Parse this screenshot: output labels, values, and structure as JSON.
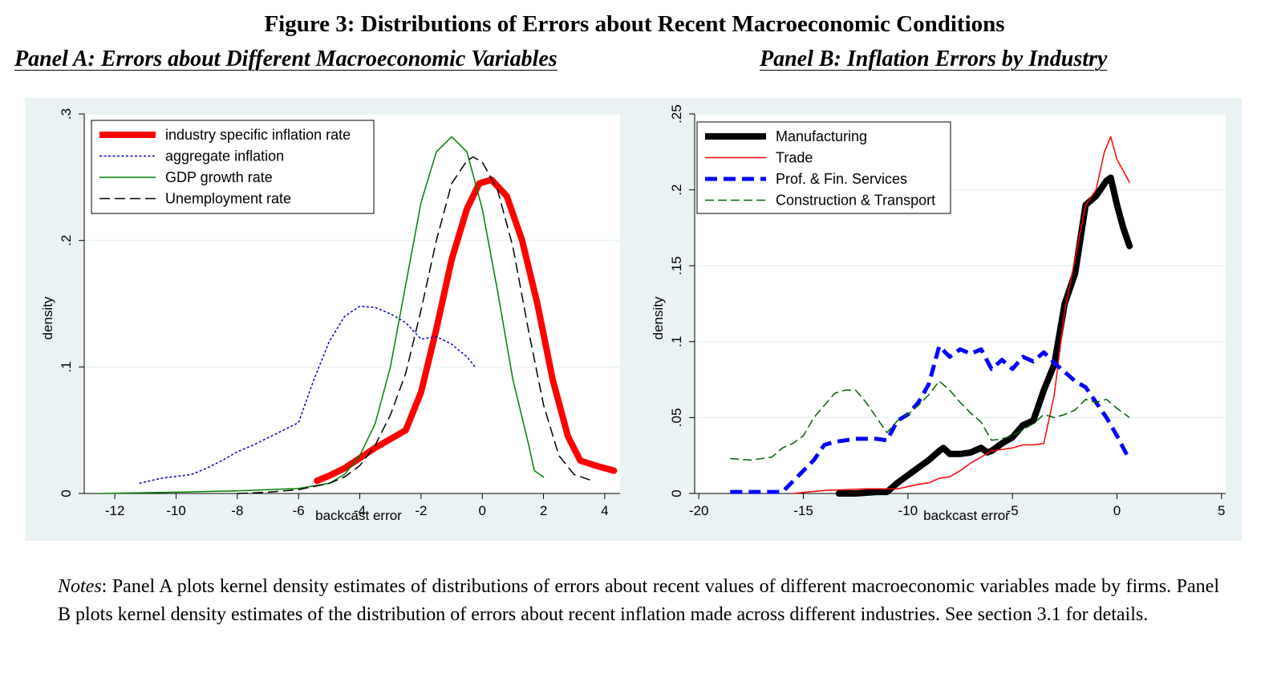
{
  "figure_title": "Figure 3: Distributions of Errors about Recent Macroeconomic Conditions",
  "panel_a_title": "Panel A: Errors about Different Macroeconomic Variables",
  "panel_b_title": "Panel B: Inflation Errors by Industry",
  "notes_label": "Notes",
  "notes_text": ": Panel A plots kernel density estimates of distributions of errors about recent values of different macroeconomic variables made by firms. Panel B plots kernel density estimates of the distribution of errors about recent inflation made across different industries. See section 3.1 for details.",
  "colors": {
    "panel_bg": "#eaf2f3",
    "plot_bg": "#ffffff",
    "grid": "#eaf2f3"
  },
  "chart_data": [
    {
      "type": "line",
      "xlabel": "backcast error",
      "ylabel": "density",
      "xlim": [
        -13,
        4.5
      ],
      "ylim": [
        0,
        0.3
      ],
      "xticks": [
        -12,
        -10,
        -8,
        -6,
        -4,
        -2,
        0,
        2,
        4
      ],
      "xtick_labels": [
        "-12",
        "-10",
        "-8",
        "-6",
        "-4",
        "-2",
        "0",
        "2",
        "4"
      ],
      "yticks": [
        0,
        0.1,
        0.2,
        0.3
      ],
      "ytick_labels": [
        "0",
        ".1",
        ".2",
        ".3"
      ],
      "grid": true,
      "legend_position": "top-left",
      "series": [
        {
          "name": "industry specific inflation rate",
          "color": "#ff0000",
          "width": 8,
          "dash": "",
          "x": [
            -5.4,
            -5.0,
            -4.5,
            -4.0,
            -3.5,
            -3.0,
            -2.5,
            -2.0,
            -1.5,
            -1.0,
            -0.5,
            -0.1,
            0.3,
            0.8,
            1.3,
            1.8,
            2.3,
            2.8,
            3.2,
            3.7,
            4.3
          ],
          "y": [
            0.01,
            0.014,
            0.02,
            0.028,
            0.036,
            0.043,
            0.05,
            0.08,
            0.13,
            0.185,
            0.225,
            0.245,
            0.248,
            0.235,
            0.2,
            0.15,
            0.09,
            0.045,
            0.026,
            0.022,
            0.018
          ]
        },
        {
          "name": "aggregate inflation",
          "color": "#0000cc",
          "width": 1.5,
          "dash": "3,2.5",
          "x": [
            -11.2,
            -10.5,
            -9.5,
            -9.0,
            -8.5,
            -8.0,
            -7.5,
            -7.0,
            -6.5,
            -6.0,
            -5.5,
            -5.0,
            -4.5,
            -4.0,
            -3.5,
            -3.0,
            -2.5,
            -2.0,
            -1.5,
            -1.0,
            -0.5,
            -0.2
          ],
          "y": [
            0.008,
            0.012,
            0.015,
            0.02,
            0.026,
            0.033,
            0.038,
            0.044,
            0.05,
            0.056,
            0.09,
            0.12,
            0.14,
            0.148,
            0.147,
            0.142,
            0.135,
            0.122,
            0.124,
            0.118,
            0.108,
            0.099
          ]
        },
        {
          "name": "GDP growth rate",
          "color": "#008000",
          "width": 1.5,
          "dash": "",
          "x": [
            -12.5,
            -10.0,
            -8.0,
            -6.0,
            -5.0,
            -4.5,
            -4.0,
            -3.5,
            -3.0,
            -2.5,
            -2.0,
            -1.5,
            -1.0,
            -0.5,
            0.0,
            0.5,
            1.0,
            1.5,
            1.7,
            2.0
          ],
          "y": [
            0.0,
            0.001,
            0.002,
            0.004,
            0.008,
            0.015,
            0.03,
            0.055,
            0.1,
            0.165,
            0.23,
            0.27,
            0.282,
            0.27,
            0.225,
            0.16,
            0.09,
            0.04,
            0.018,
            0.013
          ]
        },
        {
          "name": "Unemployment rate",
          "color": "#000000",
          "width": 1.5,
          "dash": "13,6",
          "x": [
            -8.0,
            -7.0,
            -6.0,
            -5.0,
            -4.5,
            -4.0,
            -3.5,
            -3.0,
            -2.5,
            -2.0,
            -1.5,
            -1.0,
            -0.5,
            -0.3,
            0.0,
            0.5,
            1.0,
            1.5,
            2.0,
            2.5,
            3.0,
            3.6
          ],
          "y": [
            0.0,
            0.001,
            0.003,
            0.008,
            0.013,
            0.022,
            0.038,
            0.062,
            0.095,
            0.145,
            0.2,
            0.245,
            0.263,
            0.266,
            0.262,
            0.24,
            0.195,
            0.13,
            0.07,
            0.03,
            0.015,
            0.01
          ]
        }
      ]
    },
    {
      "type": "line",
      "xlabel": "backcast error",
      "ylabel": "density",
      "xlim": [
        -20.2,
        5.2
      ],
      "ylim": [
        0,
        0.25
      ],
      "xticks": [
        -20,
        -15,
        -10,
        -5,
        0,
        5
      ],
      "xtick_labels": [
        "-20",
        "-15",
        "-10",
        "-5",
        "0",
        "5"
      ],
      "yticks": [
        0,
        0.05,
        0.1,
        0.15,
        0.2,
        0.25
      ],
      "ytick_labels": [
        "0",
        ".05",
        ".1",
        ".15",
        ".2",
        ".25"
      ],
      "grid": true,
      "legend_position": "top-left",
      "series": [
        {
          "name": "Manufacturing",
          "color": "#000000",
          "width": 8,
          "dash": "",
          "x": [
            -13.3,
            -12.5,
            -11.5,
            -11.0,
            -10.5,
            -10.0,
            -9.5,
            -9.0,
            -8.5,
            -8.3,
            -8.0,
            -7.5,
            -7.0,
            -6.5,
            -6.2,
            -6.0,
            -5.5,
            -5.0,
            -4.5,
            -4.0,
            -3.5,
            -3.0,
            -2.5,
            -2.0,
            -1.5,
            -1.0,
            -0.5,
            -0.3,
            0.0,
            0.3,
            0.6
          ],
          "y": [
            0.0,
            0.0,
            0.001,
            0.001,
            0.007,
            0.012,
            0.017,
            0.022,
            0.028,
            0.03,
            0.026,
            0.026,
            0.027,
            0.03,
            0.027,
            0.028,
            0.033,
            0.037,
            0.045,
            0.048,
            0.068,
            0.085,
            0.125,
            0.145,
            0.19,
            0.196,
            0.206,
            0.208,
            0.19,
            0.175,
            0.163
          ]
        },
        {
          "name": "Trade",
          "color": "#ff0000",
          "width": 1.5,
          "dash": "",
          "x": [
            -15.5,
            -14.0,
            -12.0,
            -10.5,
            -9.5,
            -9.0,
            -8.5,
            -8.0,
            -7.5,
            -7.0,
            -6.5,
            -6.0,
            -5.5,
            -5.0,
            -4.5,
            -4.0,
            -3.5,
            -3.0,
            -2.5,
            -2.0,
            -1.5,
            -1.0,
            -0.6,
            -0.3,
            0.0,
            0.6
          ],
          "y": [
            0.0,
            0.002,
            0.003,
            0.003,
            0.006,
            0.007,
            0.01,
            0.011,
            0.015,
            0.02,
            0.024,
            0.028,
            0.029,
            0.03,
            0.032,
            0.032,
            0.033,
            0.065,
            0.12,
            0.155,
            0.19,
            0.2,
            0.225,
            0.235,
            0.22,
            0.205
          ]
        },
        {
          "name": "Prof. & Fin. Services",
          "color": "#0000ff",
          "width": 5,
          "dash": "15,8",
          "x": [
            -18.5,
            -17.0,
            -16.0,
            -15.5,
            -15.0,
            -14.5,
            -14.0,
            -13.5,
            -13.0,
            -12.5,
            -12.0,
            -11.5,
            -11.0,
            -10.5,
            -10.0,
            -9.5,
            -9.0,
            -8.5,
            -8.0,
            -7.5,
            -7.0,
            -6.5,
            -6.0,
            -5.5,
            -5.0,
            -4.5,
            -4.0,
            -3.5,
            -3.0,
            -2.5,
            -2.0,
            -1.5,
            -1.0,
            -0.5,
            0.0,
            0.6
          ],
          "y": [
            0.001,
            0.001,
            0.001,
            0.008,
            0.015,
            0.022,
            0.032,
            0.034,
            0.035,
            0.036,
            0.036,
            0.036,
            0.035,
            0.048,
            0.052,
            0.06,
            0.072,
            0.097,
            0.09,
            0.095,
            0.092,
            0.095,
            0.082,
            0.088,
            0.082,
            0.09,
            0.087,
            0.093,
            0.086,
            0.08,
            0.074,
            0.07,
            0.06,
            0.05,
            0.038,
            0.022
          ]
        },
        {
          "name": "Construction & Transport",
          "color": "#006400",
          "width": 1.5,
          "dash": "11,5",
          "x": [
            -18.5,
            -17.5,
            -16.5,
            -16.0,
            -15.5,
            -15.0,
            -14.5,
            -14.0,
            -13.5,
            -13.0,
            -12.5,
            -12.0,
            -11.5,
            -11.0,
            -10.5,
            -10.0,
            -9.5,
            -9.0,
            -8.5,
            -8.0,
            -7.5,
            -7.0,
            -6.5,
            -6.0,
            -5.5,
            -5.0,
            -4.5,
            -4.0,
            -3.5,
            -3.0,
            -2.5,
            -2.0,
            -1.5,
            -1.0,
            -0.5,
            0.0,
            0.6
          ],
          "y": [
            0.023,
            0.022,
            0.024,
            0.03,
            0.033,
            0.038,
            0.05,
            0.058,
            0.066,
            0.068,
            0.068,
            0.06,
            0.05,
            0.04,
            0.048,
            0.052,
            0.058,
            0.065,
            0.074,
            0.068,
            0.06,
            0.053,
            0.047,
            0.035,
            0.036,
            0.038,
            0.042,
            0.046,
            0.052,
            0.05,
            0.052,
            0.055,
            0.062,
            0.06,
            0.062,
            0.056,
            0.05
          ]
        }
      ]
    }
  ]
}
